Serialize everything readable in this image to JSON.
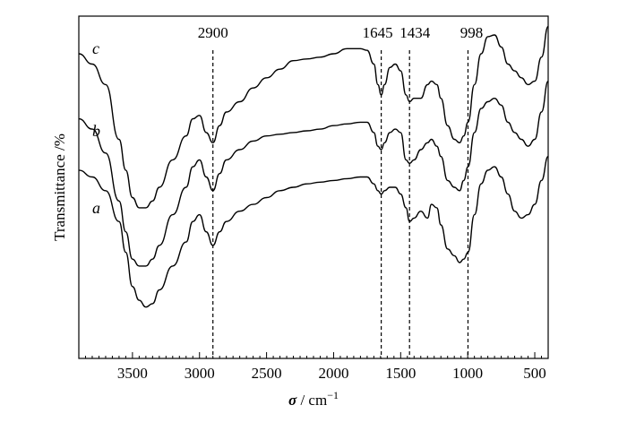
{
  "chart_data": {
    "type": "line",
    "title": "",
    "xlabel_symbol": "σ",
    "xlabel_rest": " / cm",
    "xlabel_exp": "−1",
    "ylabel": "Transmittance /%",
    "xlim": [
      3900,
      400
    ],
    "x_reversed": true,
    "ticks": [
      {
        "value": 3500,
        "label": "3500"
      },
      {
        "value": 3000,
        "label": "3000"
      },
      {
        "value": 2500,
        "label": "2500"
      },
      {
        "value": 2000,
        "label": "2000"
      },
      {
        "value": 1500,
        "label": "1500"
      },
      {
        "value": 1000,
        "label": "1000"
      },
      {
        "value": 500,
        "label": "500"
      }
    ],
    "peaks": [
      {
        "value": 2900,
        "label": "2900"
      },
      {
        "value": 1645,
        "label": "1645"
      },
      {
        "value": 1434,
        "label": "1434"
      },
      {
        "value": 998,
        "label": "998"
      }
    ],
    "series": [
      {
        "name": "c",
        "points": [
          [
            3900,
            0.89
          ],
          [
            3800,
            0.86
          ],
          [
            3700,
            0.8
          ],
          [
            3600,
            0.64
          ],
          [
            3550,
            0.55
          ],
          [
            3500,
            0.47
          ],
          [
            3450,
            0.44
          ],
          [
            3400,
            0.44
          ],
          [
            3350,
            0.46
          ],
          [
            3300,
            0.5
          ],
          [
            3200,
            0.58
          ],
          [
            3100,
            0.65
          ],
          [
            3050,
            0.7
          ],
          [
            3000,
            0.71
          ],
          [
            2950,
            0.66
          ],
          [
            2900,
            0.63
          ],
          [
            2850,
            0.68
          ],
          [
            2800,
            0.72
          ],
          [
            2700,
            0.75
          ],
          [
            2600,
            0.79
          ],
          [
            2500,
            0.82
          ],
          [
            2400,
            0.845
          ],
          [
            2300,
            0.87
          ],
          [
            2200,
            0.875
          ],
          [
            2100,
            0.88
          ],
          [
            2000,
            0.89
          ],
          [
            1900,
            0.905
          ],
          [
            1800,
            0.905
          ],
          [
            1750,
            0.9
          ],
          [
            1700,
            0.86
          ],
          [
            1670,
            0.8
          ],
          [
            1645,
            0.77
          ],
          [
            1620,
            0.8
          ],
          [
            1580,
            0.85
          ],
          [
            1540,
            0.86
          ],
          [
            1500,
            0.84
          ],
          [
            1460,
            0.77
          ],
          [
            1434,
            0.75
          ],
          [
            1400,
            0.76
          ],
          [
            1350,
            0.76
          ],
          [
            1300,
            0.8
          ],
          [
            1270,
            0.81
          ],
          [
            1230,
            0.8
          ],
          [
            1200,
            0.76
          ],
          [
            1150,
            0.68
          ],
          [
            1100,
            0.64
          ],
          [
            1060,
            0.63
          ],
          [
            1030,
            0.65
          ],
          [
            998,
            0.69
          ],
          [
            950,
            0.8
          ],
          [
            900,
            0.89
          ],
          [
            850,
            0.94
          ],
          [
            800,
            0.945
          ],
          [
            750,
            0.91
          ],
          [
            700,
            0.86
          ],
          [
            650,
            0.84
          ],
          [
            600,
            0.82
          ],
          [
            550,
            0.8
          ],
          [
            500,
            0.81
          ],
          [
            450,
            0.88
          ],
          [
            400,
            0.97
          ]
        ]
      },
      {
        "name": "b",
        "points": [
          [
            3900,
            0.7
          ],
          [
            3800,
            0.67
          ],
          [
            3700,
            0.6
          ],
          [
            3600,
            0.46
          ],
          [
            3550,
            0.37
          ],
          [
            3500,
            0.29
          ],
          [
            3450,
            0.27
          ],
          [
            3400,
            0.27
          ],
          [
            3350,
            0.29
          ],
          [
            3300,
            0.33
          ],
          [
            3200,
            0.42
          ],
          [
            3100,
            0.5
          ],
          [
            3050,
            0.56
          ],
          [
            3000,
            0.58
          ],
          [
            2950,
            0.53
          ],
          [
            2900,
            0.49
          ],
          [
            2850,
            0.54
          ],
          [
            2800,
            0.58
          ],
          [
            2700,
            0.61
          ],
          [
            2600,
            0.635
          ],
          [
            2500,
            0.65
          ],
          [
            2400,
            0.655
          ],
          [
            2300,
            0.66
          ],
          [
            2200,
            0.665
          ],
          [
            2100,
            0.67
          ],
          [
            2000,
            0.68
          ],
          [
            1900,
            0.685
          ],
          [
            1800,
            0.69
          ],
          [
            1750,
            0.69
          ],
          [
            1700,
            0.66
          ],
          [
            1670,
            0.62
          ],
          [
            1645,
            0.61
          ],
          [
            1620,
            0.63
          ],
          [
            1580,
            0.66
          ],
          [
            1540,
            0.67
          ],
          [
            1500,
            0.66
          ],
          [
            1460,
            0.58
          ],
          [
            1434,
            0.57
          ],
          [
            1400,
            0.58
          ],
          [
            1350,
            0.61
          ],
          [
            1300,
            0.63
          ],
          [
            1270,
            0.64
          ],
          [
            1230,
            0.62
          ],
          [
            1200,
            0.59
          ],
          [
            1150,
            0.52
          ],
          [
            1100,
            0.5
          ],
          [
            1060,
            0.49
          ],
          [
            1030,
            0.52
          ],
          [
            998,
            0.56
          ],
          [
            950,
            0.66
          ],
          [
            900,
            0.73
          ],
          [
            850,
            0.75
          ],
          [
            800,
            0.76
          ],
          [
            750,
            0.74
          ],
          [
            700,
            0.69
          ],
          [
            650,
            0.66
          ],
          [
            600,
            0.64
          ],
          [
            550,
            0.62
          ],
          [
            500,
            0.64
          ],
          [
            450,
            0.72
          ],
          [
            400,
            0.81
          ]
        ]
      },
      {
        "name": "a",
        "points": [
          [
            3900,
            0.55
          ],
          [
            3800,
            0.53
          ],
          [
            3700,
            0.49
          ],
          [
            3600,
            0.4
          ],
          [
            3550,
            0.31
          ],
          [
            3500,
            0.21
          ],
          [
            3450,
            0.17
          ],
          [
            3400,
            0.15
          ],
          [
            3350,
            0.16
          ],
          [
            3300,
            0.2
          ],
          [
            3200,
            0.27
          ],
          [
            3100,
            0.34
          ],
          [
            3050,
            0.4
          ],
          [
            3000,
            0.42
          ],
          [
            2950,
            0.37
          ],
          [
            2900,
            0.33
          ],
          [
            2850,
            0.37
          ],
          [
            2800,
            0.4
          ],
          [
            2700,
            0.43
          ],
          [
            2600,
            0.45
          ],
          [
            2500,
            0.47
          ],
          [
            2400,
            0.49
          ],
          [
            2300,
            0.5
          ],
          [
            2200,
            0.51
          ],
          [
            2100,
            0.515
          ],
          [
            2000,
            0.52
          ],
          [
            1900,
            0.525
          ],
          [
            1800,
            0.53
          ],
          [
            1750,
            0.53
          ],
          [
            1700,
            0.51
          ],
          [
            1670,
            0.49
          ],
          [
            1645,
            0.48
          ],
          [
            1620,
            0.49
          ],
          [
            1580,
            0.5
          ],
          [
            1540,
            0.5
          ],
          [
            1500,
            0.48
          ],
          [
            1460,
            0.44
          ],
          [
            1434,
            0.4
          ],
          [
            1400,
            0.41
          ],
          [
            1350,
            0.43
          ],
          [
            1300,
            0.41
          ],
          [
            1270,
            0.45
          ],
          [
            1230,
            0.44
          ],
          [
            1200,
            0.39
          ],
          [
            1150,
            0.32
          ],
          [
            1100,
            0.3
          ],
          [
            1060,
            0.28
          ],
          [
            1030,
            0.29
          ],
          [
            998,
            0.31
          ],
          [
            950,
            0.42
          ],
          [
            900,
            0.51
          ],
          [
            850,
            0.55
          ],
          [
            800,
            0.56
          ],
          [
            750,
            0.53
          ],
          [
            700,
            0.48
          ],
          [
            650,
            0.43
          ],
          [
            600,
            0.41
          ],
          [
            550,
            0.42
          ],
          [
            500,
            0.45
          ],
          [
            450,
            0.52
          ],
          [
            400,
            0.59
          ]
        ]
      }
    ]
  }
}
